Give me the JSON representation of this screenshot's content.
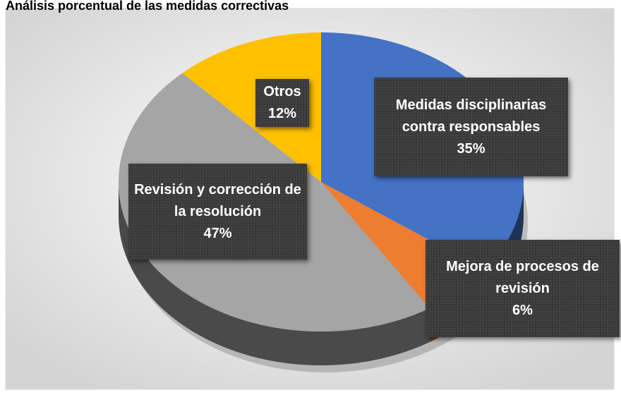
{
  "chart_data": {
    "type": "pie",
    "title": "Análisis porcentual de las medidas correctivas",
    "categories": [
      "Medidas disciplinarias contra responsables",
      "Mejora de procesos de revisión",
      "Revisión y corrección de la resolución",
      "Otros"
    ],
    "values": [
      35,
      6,
      47,
      12
    ],
    "value_labels": [
      "35%",
      "6%",
      "47%",
      "12%"
    ],
    "colors": [
      "#4472c4",
      "#ed7d31",
      "#a5a5a5",
      "#ffc000"
    ]
  }
}
